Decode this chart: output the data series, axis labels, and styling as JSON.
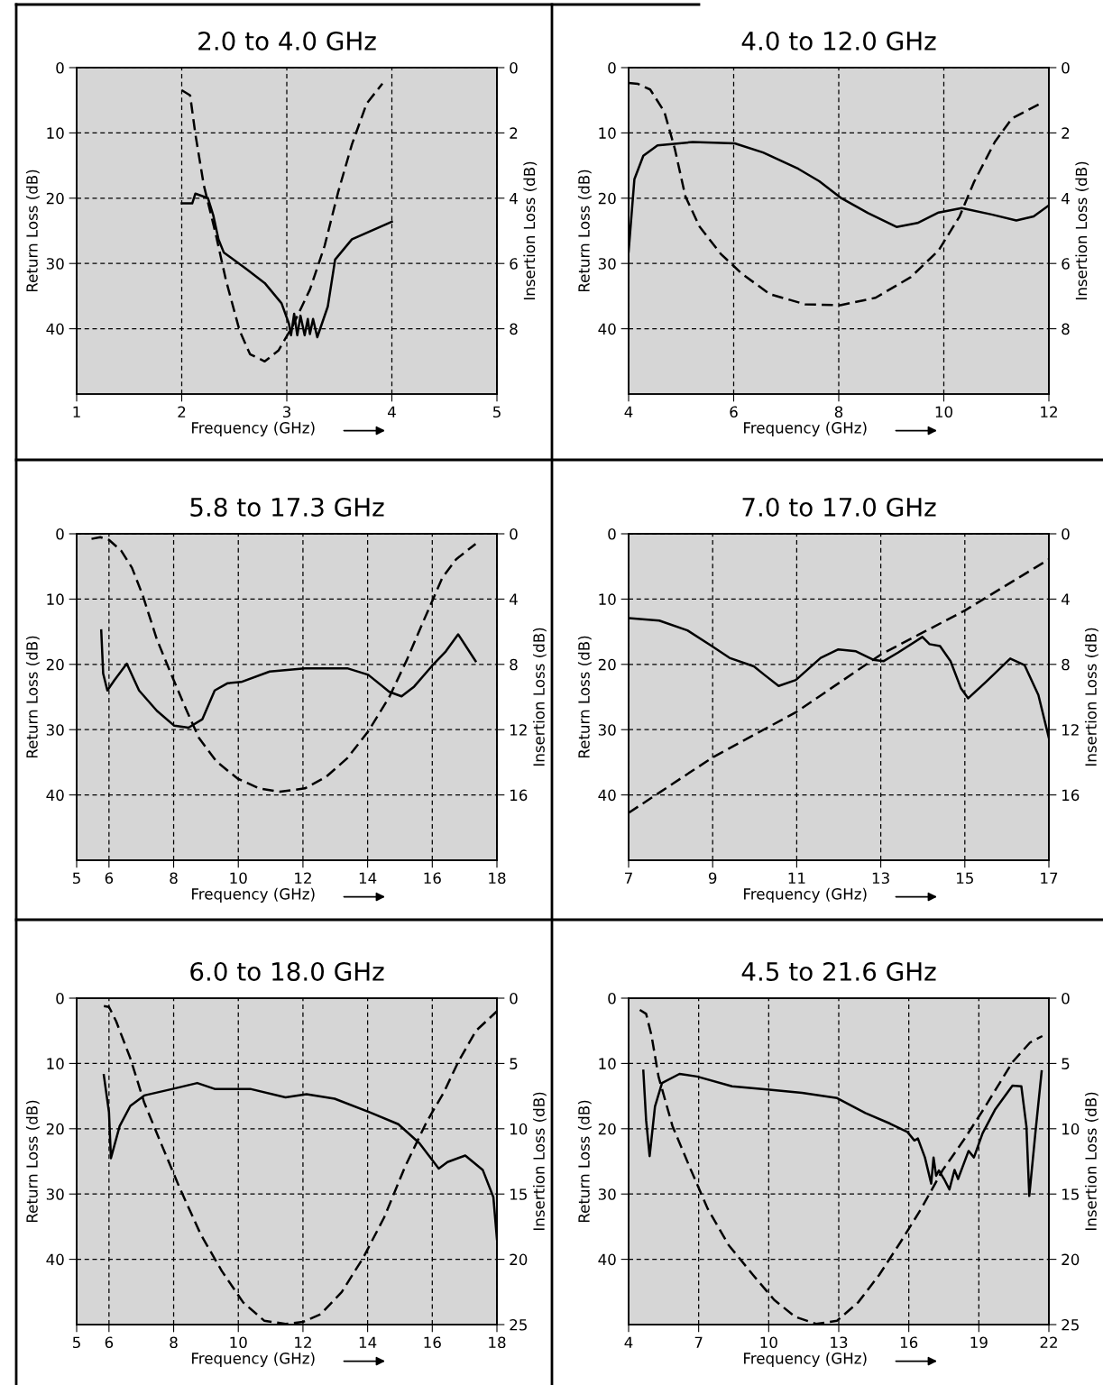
{
  "chart_data": [
    {
      "type": "line",
      "title": "2.0 to 4.0 GHz",
      "xlabel": "Frequency (GHz)",
      "ylabel": "Return Loss (dB)",
      "y2label": "Insertion Loss (dB)",
      "xlim": [
        1,
        5
      ],
      "xticks": [
        1,
        2,
        3,
        4,
        5
      ],
      "ylim": [
        50,
        0
      ],
      "yticks": [
        0,
        10,
        20,
        30,
        40
      ],
      "y2lim": [
        10,
        0
      ],
      "y2ticks": [
        0,
        2,
        4,
        6,
        8
      ],
      "grid": true,
      "marker": "none",
      "series": [
        {
          "color": "#000000",
          "line_style": "solid",
          "x": [
            2.0,
            2.1,
            2.13,
            2.25,
            2.3,
            2.35,
            2.4,
            2.62,
            2.79,
            2.95,
            3.02,
            3.04,
            3.07,
            3.1,
            3.13,
            3.17,
            3.2,
            3.22,
            3.25,
            3.29,
            3.39,
            3.46,
            3.62,
            4.0
          ],
          "values": [
            20.8,
            20.8,
            19.3,
            20,
            22.6,
            26.3,
            28.3,
            30.9,
            33,
            36.1,
            39.2,
            41,
            37.7,
            41,
            38,
            41,
            38.5,
            40.8,
            38.5,
            41.3,
            36.6,
            29.4,
            26.3,
            23.6
          ]
        },
        {
          "color": "#000000",
          "line_style": "dashed",
          "axis": "y2",
          "x": [
            2.0,
            2.08,
            2.13,
            2.21,
            2.32,
            2.42,
            2.55,
            2.65,
            2.79,
            2.92,
            3.05,
            3.22,
            3.36,
            3.49,
            3.62,
            3.76,
            3.91
          ],
          "values": [
            0.69,
            0.85,
            2.04,
            3.6,
            5.05,
            6.5,
            8.05,
            8.78,
            9.0,
            8.67,
            7.95,
            6.8,
            5.46,
            3.8,
            2.35,
            1.1,
            0.49
          ]
        }
      ]
    },
    {
      "type": "line",
      "title": "4.0 to 12.0 GHz",
      "xlabel": "Frequency (GHz)",
      "ylabel": "Return Loss (dB)",
      "y2label": "Insertion Loss (dB)",
      "xlim": [
        4,
        12
      ],
      "xticks": [
        4,
        6,
        8,
        10,
        12
      ],
      "ylim": [
        50,
        0
      ],
      "yticks": [
        0,
        10,
        20,
        30,
        40
      ],
      "y2lim": [
        10,
        0
      ],
      "y2ticks": [
        0,
        2,
        4,
        6,
        8
      ],
      "grid": true,
      "marker": "none",
      "series": [
        {
          "color": "#000000",
          "line_style": "solid",
          "x": [
            4.0,
            4.11,
            4.28,
            4.55,
            5.22,
            6.02,
            6.56,
            7.23,
            7.63,
            8.03,
            8.56,
            9.1,
            9.5,
            9.9,
            10.34,
            10.91,
            11.38,
            11.71,
            12.0
          ],
          "values": [
            28.2,
            17.1,
            13.5,
            11.9,
            11.4,
            11.6,
            13,
            15.5,
            17.4,
            19.9,
            22.3,
            24.4,
            23.8,
            22.2,
            21.5,
            22.5,
            23.4,
            22.8,
            21.1
          ]
        },
        {
          "color": "#000000",
          "line_style": "dashed",
          "axis": "y2",
          "x": [
            4.0,
            4.18,
            4.41,
            4.68,
            4.88,
            5.08,
            5.35,
            5.75,
            6.16,
            6.69,
            7.36,
            8.03,
            8.7,
            9.37,
            9.9,
            10.3,
            10.57,
            10.97,
            11.3,
            11.84
          ],
          "values": [
            0.47,
            0.5,
            0.67,
            1.35,
            2.49,
            3.94,
            4.87,
            5.7,
            6.32,
            6.94,
            7.25,
            7.28,
            7.05,
            6.42,
            5.6,
            4.56,
            3.52,
            2.28,
            1.55,
            1.1
          ]
        }
      ]
    },
    {
      "type": "line",
      "title": "5.8 to 17.3 GHz",
      "xlabel": "Frequency (GHz)",
      "ylabel": "Return Loss (dB)",
      "y2label": "Insertion Loss (dB)",
      "xlim": [
        5,
        18
      ],
      "xticks": [
        5,
        6,
        8,
        10,
        12,
        14,
        16,
        18
      ],
      "ylim": [
        50,
        0
      ],
      "yticks": [
        0,
        10,
        20,
        30,
        40
      ],
      "y2lim": [
        20,
        0
      ],
      "y2ticks": [
        0,
        4,
        8,
        12,
        16
      ],
      "grid": true,
      "marker": "none",
      "series": [
        {
          "color": "#000000",
          "line_style": "solid",
          "x": [
            5.76,
            5.82,
            5.95,
            6.17,
            6.55,
            6.93,
            7.48,
            8.02,
            8.46,
            8.89,
            9.27,
            9.66,
            10.09,
            10.97,
            12.06,
            13.37,
            14.02,
            14.67,
            15.05,
            15.44,
            15.98,
            16.42,
            16.8,
            17.34
          ],
          "values": [
            14.8,
            21.4,
            24,
            22.4,
            19.9,
            24,
            27.1,
            29.4,
            29.7,
            28.4,
            24,
            22.9,
            22.7,
            21.1,
            20.6,
            20.6,
            21.6,
            24.2,
            24.9,
            23.4,
            20.3,
            18,
            15.4,
            19.5
          ]
        },
        {
          "color": "#000000",
          "line_style": "dashed",
          "axis": "y2",
          "x": [
            5.46,
            5.73,
            6.0,
            6.38,
            6.71,
            7.04,
            7.48,
            7.91,
            8.35,
            8.78,
            9.33,
            9.98,
            10.64,
            11.29,
            12.06,
            12.71,
            13.37,
            14.02,
            14.67,
            15.22,
            15.76,
            16.31,
            16.74,
            17.34
          ],
          "values": [
            0.31,
            0.21,
            0.37,
            1.04,
            2.08,
            3.75,
            6.46,
            8.54,
            10.6,
            12.5,
            13.96,
            15,
            15.6,
            15.8,
            15.6,
            14.9,
            13.75,
            12.1,
            10,
            7.7,
            5.2,
            2.7,
            1.56,
            0.62
          ]
        }
      ]
    },
    {
      "type": "line",
      "title": "7.0 to 17.0 GHz",
      "xlabel": "Frequency (GHz)",
      "ylabel": "Return Loss (dB)",
      "y2label": "Insertion Loss (dB)",
      "xlim": [
        7,
        17
      ],
      "xticks": [
        7,
        9,
        11,
        13,
        15,
        17
      ],
      "ylim": [
        50,
        0
      ],
      "yticks": [
        0,
        10,
        20,
        30,
        40
      ],
      "y2lim": [
        20,
        0
      ],
      "y2ticks": [
        0,
        4,
        8,
        12,
        16
      ],
      "grid": true,
      "marker": "none",
      "series": [
        {
          "color": "#000000",
          "line_style": "solid",
          "x": [
            7.0,
            7.73,
            8.4,
            8.98,
            9.4,
            9.98,
            10.23,
            10.57,
            10.98,
            11.57,
            11.99,
            12.41,
            12.82,
            13.07,
            13.41,
            13.99,
            14.16,
            14.41,
            14.66,
            14.91,
            15.08,
            15.5,
            16.08,
            16.42,
            16.75,
            17.0
          ],
          "values": [
            12.9,
            13.3,
            14.8,
            17.2,
            19,
            20.3,
            21.6,
            23.3,
            22.4,
            19,
            17.7,
            18,
            19.3,
            19.5,
            18.2,
            15.8,
            16.9,
            17.2,
            19.5,
            23.7,
            25.2,
            22.7,
            19.1,
            20.1,
            24.7,
            31.3
          ]
        },
        {
          "color": "#000000",
          "line_style": "dashed",
          "axis": "y2",
          "x": [
            7.0,
            9.0,
            11.0,
            13.0,
            15.0,
            17.0
          ],
          "values": [
            17.1,
            13.7,
            10.9,
            7.4,
            4.7,
            1.56
          ]
        }
      ]
    },
    {
      "type": "line",
      "title": "6.0 to 18.0 GHz",
      "xlabel": "Frequency (GHz)",
      "ylabel": "Return Loss (dB)",
      "y2label": "Insertion Loss (dB)",
      "xlim": [
        5,
        18
      ],
      "xticks": [
        5,
        6,
        8,
        10,
        12,
        14,
        16,
        18
      ],
      "ylim": [
        50,
        0
      ],
      "yticks": [
        0,
        10,
        20,
        30,
        40
      ],
      "y2lim": [
        25,
        0
      ],
      "y2ticks": [
        0,
        5,
        10,
        15,
        20,
        25
      ],
      "grid": true,
      "marker": "none",
      "series": [
        {
          "color": "#000000",
          "line_style": "solid",
          "x": [
            5.84,
            6.0,
            6.06,
            6.33,
            6.66,
            7.09,
            7.97,
            8.73,
            9.27,
            10.37,
            11.46,
            12.11,
            12.98,
            14.07,
            14.95,
            15.6,
            16.2,
            16.47,
            17.02,
            17.56,
            17.89,
            18.0
          ],
          "values": [
            11.8,
            17.5,
            24.5,
            19.6,
            16.5,
            14.9,
            13.9,
            13,
            13.9,
            13.9,
            15.2,
            14.7,
            15.4,
            17.5,
            19.3,
            22.2,
            26.1,
            25.1,
            24.1,
            26.3,
            30.5,
            36.9
          ]
        },
        {
          "color": "#000000",
          "line_style": "dashed",
          "axis": "y2",
          "x": [
            5.84,
            6.0,
            6.22,
            6.66,
            7.09,
            7.64,
            8.18,
            8.84,
            9.49,
            10.15,
            10.8,
            11.46,
            12.0,
            12.55,
            13.2,
            13.86,
            14.51,
            15.16,
            15.82,
            16.36,
            16.8,
            17.35,
            18.0
          ],
          "values": [
            0.6,
            0.67,
            1.76,
            4.6,
            8,
            11.3,
            14.5,
            18.1,
            20.9,
            23.3,
            24.7,
            24.95,
            24.8,
            24.2,
            22.5,
            19.9,
            16.8,
            12.9,
            9.5,
            7.2,
            4.9,
            2.5,
            1.0
          ]
        }
      ]
    },
    {
      "type": "line",
      "title": "4.5 to 21.6 GHz",
      "xlabel": "Frequency (GHz)",
      "ylabel": "Return Loss (dB)",
      "y2label": "Insertion Loss (dB)",
      "xlim": [
        4,
        22
      ],
      "xticks": [
        4,
        7,
        10,
        13,
        16,
        19,
        22
      ],
      "ylim": [
        50,
        0
      ],
      "yticks": [
        0,
        10,
        20,
        30,
        40
      ],
      "y2lim": [
        25,
        0
      ],
      "y2ticks": [
        0,
        5,
        10,
        15,
        20,
        25
      ],
      "grid": true,
      "marker": "none",
      "series": [
        {
          "color": "#000000",
          "line_style": "solid",
          "x": [
            4.63,
            4.75,
            4.9,
            5.13,
            5.43,
            6.18,
            6.93,
            8.43,
            9.93,
            11.43,
            12.93,
            14.14,
            15.19,
            15.94,
            16.24,
            16.39,
            16.69,
            16.96,
            17.06,
            17.17,
            17.29,
            17.51,
            17.74,
            17.96,
            18.11,
            18.56,
            18.79,
            19.16,
            19.69,
            20.44,
            20.82,
            21.04,
            21.16,
            21.42,
            21.69
          ],
          "values": [
            11.1,
            18.7,
            24.2,
            16.6,
            13,
            11.6,
            12,
            13.5,
            14,
            14.5,
            15.3,
            17.6,
            19.2,
            20.5,
            21.8,
            21.5,
            24.4,
            28.4,
            24.4,
            27.2,
            26.4,
            27.7,
            29.3,
            26.3,
            27.7,
            23.4,
            24.4,
            20.7,
            17.1,
            13.4,
            13.5,
            19.7,
            30.3,
            20.7,
            11.2
          ]
        },
        {
          "color": "#000000",
          "line_style": "dashed",
          "axis": "y2",
          "x": [
            4.48,
            4.75,
            4.98,
            5.28,
            5.88,
            6.63,
            7.38,
            8.28,
            9.33,
            10.23,
            11.13,
            12.03,
            12.93,
            13.83,
            14.73,
            15.64,
            16.54,
            17.44,
            18.34,
            19.24,
            20.44,
            21.19,
            21.72
          ],
          "values": [
            0.9,
            1.2,
            2.85,
            6,
            9.8,
            13,
            16.1,
            18.9,
            21.2,
            23.1,
            24.4,
            24.95,
            24.7,
            23.3,
            21.2,
            18.7,
            16.1,
            13.2,
            10.9,
            8.4,
            4.9,
            3.4,
            2.9
          ]
        }
      ]
    }
  ]
}
